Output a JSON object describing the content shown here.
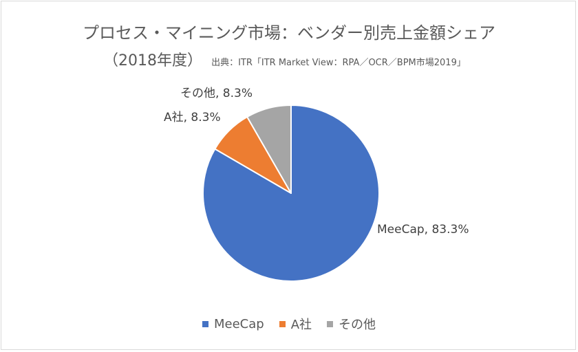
{
  "chart_data": {
    "type": "pie",
    "title": "プロセス・マイニング市場：ベンダー別売上金額シェア",
    "subtitle": "（2018年度）",
    "source": "出典：ITR「ITR Market View：RPA／OCR／BPM市場2019」",
    "categories": [
      "MeeCap",
      "A社",
      "その他"
    ],
    "values": [
      83.3,
      8.3,
      8.3
    ],
    "unit": "%",
    "data_labels": [
      "MeeCap, 83.3%",
      "A社, 8.3%",
      "その他, 8.3%"
    ],
    "colors": [
      "#4472c4",
      "#ed7d31",
      "#a5a5a5"
    ],
    "legend_position": "bottom",
    "start_angle": "12 o'clock",
    "direction": "clockwise"
  }
}
